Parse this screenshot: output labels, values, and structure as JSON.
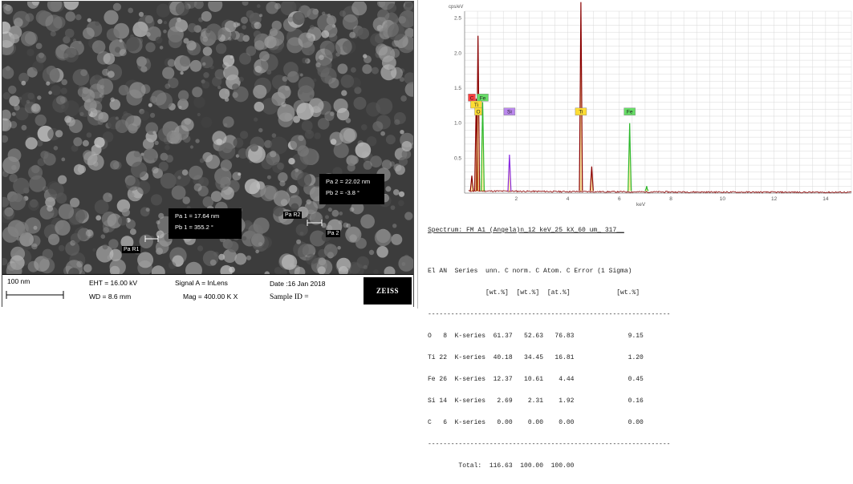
{
  "sem": {
    "scale_bar_label": "100 nm",
    "eht": "EHT = 16.00 kV",
    "wd": "WD = 8.6 mm",
    "signal": "Signal A = InLens",
    "mag": "Mag = 400.00 K X",
    "date": "Date :16 Jan 2018",
    "sample_id": "Sample ID =",
    "logo_text": "ZEISS",
    "measure1": {
      "pa": "Pa 1 = 17.64 nm",
      "pb": "Pb 1 = 355.2 °"
    },
    "measure2": {
      "pa": "Pa 2 = 22.02 nm",
      "pb": "Pb 2 = -3.8 °"
    },
    "points": [
      "Pa R1",
      "Pa R2",
      "Pa 2"
    ]
  },
  "chart_data": {
    "type": "line",
    "title": "",
    "xlabel": "keV",
    "ylabel": "cps/eV",
    "xlim": [
      0,
      15
    ],
    "ylim": [
      0,
      2.6
    ],
    "xticks": [
      2,
      4,
      6,
      8,
      10,
      12,
      14
    ],
    "yticks": [
      0.5,
      1.0,
      1.5,
      2.0,
      2.5
    ],
    "colors": {
      "background": "#ffffff",
      "grid": "#d8d8d8",
      "spectrum": "#8b0000",
      "fit": "#ffa500",
      "ti_fill": "#ffcc00"
    },
    "peaks": [
      {
        "x": 0.28,
        "y": 0.25,
        "color": "#8b0000"
      },
      {
        "x": 0.45,
        "y": 1.35,
        "color": "#8b0000"
      },
      {
        "x": 0.52,
        "y": 2.25,
        "color": "#8b0000"
      },
      {
        "x": 0.7,
        "y": 1.3,
        "color": "#2db82d"
      },
      {
        "x": 1.74,
        "y": 0.55,
        "color": "#8b2be2"
      },
      {
        "x": 4.51,
        "y": 2.78,
        "color": "#8b0000"
      },
      {
        "x": 4.93,
        "y": 0.38,
        "color": "#8b0000"
      },
      {
        "x": 6.4,
        "y": 1.0,
        "color": "#2db82d"
      },
      {
        "x": 7.06,
        "y": 0.1,
        "color": "#2db82d"
      }
    ],
    "element_labels": [
      {
        "label": "C",
        "x": 0.28,
        "y": 1.36,
        "color": "#ff4040"
      },
      {
        "label": "Fe",
        "x": 0.7,
        "y": 1.36,
        "color": "#66dd66"
      },
      {
        "label": "Ti",
        "x": 0.45,
        "y": 1.26,
        "color": "#ffdd33"
      },
      {
        "label": "O",
        "x": 0.53,
        "y": 1.16,
        "color": "#ffdd33"
      },
      {
        "label": "Si",
        "x": 1.74,
        "y": 1.16,
        "color": "#bb88ee"
      },
      {
        "label": "Ti",
        "x": 4.51,
        "y": 1.16,
        "color": "#ffdd33"
      },
      {
        "label": "Fe",
        "x": 6.4,
        "y": 1.16,
        "color": "#66dd66"
      }
    ]
  },
  "eds_table": {
    "spectrum_line": "Spectrum: FM A1 (Angela)n_12 keV_25 kX_60 um_ 317__",
    "header": "El AN  Series  unn. C norm. C Atom. C Error (1 Sigma)",
    "units": "               [wt.%]  [wt.%]  [at.%]            [wt.%]",
    "separator": "---------------------------------------------------------------",
    "rows": [
      "O   8  K-series  61.37   52.63   76.83              9.15",
      "Ti 22  K-series  40.18   34.45   16.81              1.20",
      "Fe 26  K-series  12.37   10.61    4.44              0.45",
      "Si 14  K-series   2.69    2.31    1.92              0.16",
      "C   6  K-series   0.00    0.00    0.00              0.00"
    ],
    "total": "        Total:  116.63  100.00  100.00"
  }
}
